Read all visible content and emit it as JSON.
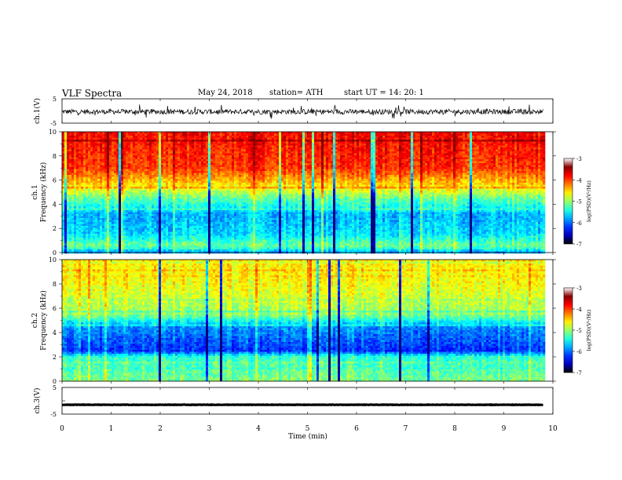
{
  "header": {
    "title": "VLF Spectra",
    "date": "May 24, 2018",
    "station": "station= ATH",
    "start": "start UT =  14: 20: 1"
  },
  "chart_data": [
    {
      "type": "line",
      "name": "ch1-waveform",
      "ylabel": "ch.1(V)",
      "ylim": [
        -5,
        5
      ],
      "yticks": [
        "5",
        "-5"
      ],
      "xlim": [
        0,
        10
      ],
      "description_values": {
        "mean": -0.3,
        "noise_amplitude": 1.5
      },
      "color": "#000000"
    },
    {
      "type": "heatmap",
      "name": "ch1-spectrogram",
      "ylabel_top": "ch.1",
      "ylabel": "Frequency (kHz)",
      "ylim": [
        0,
        10
      ],
      "yticks": [
        "0",
        "2",
        "4",
        "6",
        "8",
        "10"
      ],
      "xlim": [
        0,
        9.8
      ],
      "colorbar": {
        "label": "log(PSD)(V²/Hz)",
        "range": [
          -7,
          -3
        ],
        "ticks": [
          "-3",
          "-4",
          "-5",
          "-6",
          "-7"
        ]
      },
      "bands_kHz_to_logPSD": [
        [
          0,
          -6.0
        ],
        [
          0.5,
          -5.0
        ],
        [
          1.5,
          -5.6
        ],
        [
          3.0,
          -5.8
        ],
        [
          4.5,
          -5.1
        ],
        [
          5.5,
          -4.4
        ],
        [
          7.0,
          -3.7
        ],
        [
          10.0,
          -3.5
        ]
      ]
    },
    {
      "type": "heatmap",
      "name": "ch2-spectrogram",
      "ylabel_top": "ch.2",
      "ylabel": "Frequency (kHz)",
      "ylim": [
        0,
        10
      ],
      "yticks": [
        "0",
        "2",
        "4",
        "6",
        "8",
        "10"
      ],
      "xlim": [
        0,
        9.8
      ],
      "colorbar": {
        "label": "log(PSD)(V²/Hz)",
        "range": [
          -7,
          -3
        ],
        "ticks": [
          "-3",
          "-4",
          "-5",
          "-6",
          "-7"
        ]
      },
      "bands_kHz_to_logPSD": [
        [
          0,
          -5.0
        ],
        [
          2.0,
          -5.3
        ],
        [
          2.5,
          -6.3
        ],
        [
          4.5,
          -5.9
        ],
        [
          5.5,
          -4.9
        ],
        [
          8.0,
          -4.5
        ],
        [
          10.0,
          -4.4
        ]
      ]
    },
    {
      "type": "line",
      "name": "ch3-waveform",
      "ylabel": "ch.3(V)",
      "ylim": [
        -5,
        5
      ],
      "yticks": [
        "5",
        "-5"
      ],
      "xlim": [
        0,
        10
      ],
      "description_values": {
        "mean": -1.5,
        "noise_amplitude": 0.1
      },
      "color": "#000000"
    }
  ],
  "x_axis": {
    "label": "Time (min)",
    "ticks": [
      "0",
      "1",
      "2",
      "3",
      "4",
      "5",
      "6",
      "7",
      "8",
      "9",
      "10"
    ]
  }
}
